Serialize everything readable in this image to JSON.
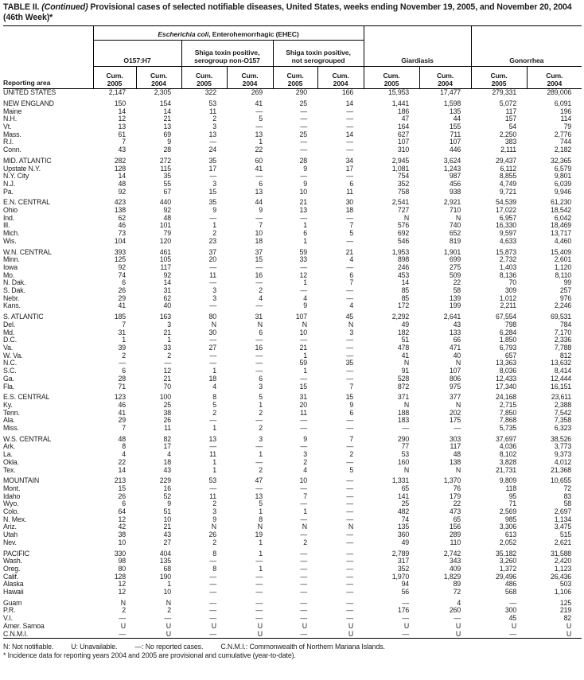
{
  "colors": {
    "background": "#ffffff",
    "text": "#1c1c1c",
    "rule": "#000000"
  },
  "title": {
    "part1": "TABLE II.",
    "part2": "(Continued)",
    "part3": "Provisional cases of selected notifiable diseases, United States, weeks ending November 19, 2005, and November 20, 2004 (46th Week)*"
  },
  "header": {
    "reporting_area": "Reporting area",
    "ehec_italic": "Escherichia coli",
    "ehec_rest": ", Enterohemorrhagic (EHEC)",
    "sub_o157": "O157:H7",
    "sub_non_o157_line1": "Shiga toxin positive,",
    "sub_non_o157_line2": "serogroup non-O157",
    "sub_notsero_line1": "Shiga toxin positive,",
    "sub_notsero_line2": "not serogrouped",
    "giardiasis": "Giardiasis",
    "gonorrhea": "Gonorrhea",
    "cum": "Cum.",
    "years": [
      "2005",
      "2004"
    ]
  },
  "table": {
    "rows": [
      {
        "area": "UNITED STATES",
        "type": "total",
        "values": [
          "2,147",
          "2,305",
          "322",
          "269",
          "290",
          "166",
          "15,953",
          "17,477",
          "279,331",
          "289,006"
        ]
      },
      {
        "area": "NEW ENGLAND",
        "type": "region",
        "gap": true,
        "values": [
          "150",
          "154",
          "53",
          "41",
          "25",
          "14",
          "1,441",
          "1,598",
          "5,072",
          "6,091"
        ]
      },
      {
        "area": "Maine",
        "type": "state",
        "values": [
          "14",
          "14",
          "11",
          "—",
          "—",
          "—",
          "186",
          "135",
          "117",
          "196"
        ]
      },
      {
        "area": "N.H.",
        "type": "state",
        "values": [
          "12",
          "21",
          "2",
          "5",
          "—",
          "—",
          "47",
          "44",
          "157",
          "114"
        ]
      },
      {
        "area": "Vt.",
        "type": "state",
        "values": [
          "13",
          "13",
          "3",
          "—",
          "—",
          "—",
          "164",
          "155",
          "54",
          "79"
        ]
      },
      {
        "area": "Mass.",
        "type": "state",
        "values": [
          "61",
          "69",
          "13",
          "13",
          "25",
          "14",
          "627",
          "711",
          "2,250",
          "2,776"
        ]
      },
      {
        "area": "R.I.",
        "type": "state",
        "values": [
          "7",
          "9",
          "—",
          "1",
          "—",
          "—",
          "107",
          "107",
          "383",
          "744"
        ]
      },
      {
        "area": "Conn.",
        "type": "state",
        "values": [
          "43",
          "28",
          "24",
          "22",
          "—",
          "—",
          "310",
          "446",
          "2,111",
          "2,182"
        ]
      },
      {
        "area": "MID. ATLANTIC",
        "type": "region",
        "gap": true,
        "values": [
          "282",
          "272",
          "35",
          "60",
          "28",
          "34",
          "2,945",
          "3,624",
          "29,437",
          "32,365"
        ]
      },
      {
        "area": "Upstate N.Y.",
        "type": "state",
        "values": [
          "128",
          "115",
          "17",
          "41",
          "9",
          "17",
          "1,081",
          "1,243",
          "6,112",
          "6,579"
        ]
      },
      {
        "area": "N.Y. City",
        "type": "state",
        "values": [
          "14",
          "35",
          "—",
          "—",
          "—",
          "—",
          "754",
          "987",
          "8,855",
          "9,801"
        ]
      },
      {
        "area": "N.J.",
        "type": "state",
        "values": [
          "48",
          "55",
          "3",
          "6",
          "9",
          "6",
          "352",
          "456",
          "4,749",
          "6,039"
        ]
      },
      {
        "area": "Pa.",
        "type": "state",
        "values": [
          "92",
          "67",
          "15",
          "13",
          "10",
          "11",
          "758",
          "938",
          "9,721",
          "9,946"
        ]
      },
      {
        "area": "E.N. CENTRAL",
        "type": "region",
        "gap": true,
        "values": [
          "423",
          "440",
          "35",
          "44",
          "21",
          "30",
          "2,541",
          "2,921",
          "54,539",
          "61,230"
        ]
      },
      {
        "area": "Ohio",
        "type": "state",
        "values": [
          "138",
          "92",
          "9",
          "9",
          "13",
          "18",
          "727",
          "710",
          "17,022",
          "18,542"
        ]
      },
      {
        "area": "Ind.",
        "type": "state",
        "values": [
          "62",
          "48",
          "—",
          "—",
          "—",
          "—",
          "N",
          "N",
          "6,957",
          "6,042"
        ]
      },
      {
        "area": "Ill.",
        "type": "state",
        "values": [
          "46",
          "101",
          "1",
          "7",
          "1",
          "7",
          "576",
          "740",
          "16,330",
          "18,469"
        ]
      },
      {
        "area": "Mich.",
        "type": "state",
        "values": [
          "73",
          "79",
          "2",
          "10",
          "6",
          "5",
          "692",
          "652",
          "9,597",
          "13,717"
        ]
      },
      {
        "area": "Wis.",
        "type": "state",
        "values": [
          "104",
          "120",
          "23",
          "18",
          "1",
          "—",
          "546",
          "819",
          "4,633",
          "4,460"
        ]
      },
      {
        "area": "W.N. CENTRAL",
        "type": "region",
        "gap": true,
        "values": [
          "393",
          "461",
          "37",
          "37",
          "59",
          "21",
          "1,953",
          "1,901",
          "15,873",
          "15,409"
        ]
      },
      {
        "area": "Minn.",
        "type": "state",
        "values": [
          "125",
          "105",
          "20",
          "15",
          "33",
          "4",
          "898",
          "699",
          "2,732",
          "2,601"
        ]
      },
      {
        "area": "Iowa",
        "type": "state",
        "values": [
          "92",
          "117",
          "—",
          "—",
          "—",
          "—",
          "246",
          "275",
          "1,403",
          "1,120"
        ]
      },
      {
        "area": "Mo.",
        "type": "state",
        "values": [
          "74",
          "92",
          "11",
          "16",
          "12",
          "6",
          "453",
          "509",
          "8,136",
          "8,110"
        ]
      },
      {
        "area": "N. Dak.",
        "type": "state",
        "values": [
          "6",
          "14",
          "—",
          "—",
          "1",
          "7",
          "14",
          "22",
          "70",
          "99"
        ]
      },
      {
        "area": "S. Dak.",
        "type": "state",
        "values": [
          "26",
          "31",
          "3",
          "2",
          "—",
          "—",
          "85",
          "58",
          "309",
          "257"
        ]
      },
      {
        "area": "Nebr.",
        "type": "state",
        "values": [
          "29",
          "62",
          "3",
          "4",
          "4",
          "—",
          "85",
          "139",
          "1,012",
          "976"
        ]
      },
      {
        "area": "Kans.",
        "type": "state",
        "values": [
          "41",
          "40",
          "—",
          "—",
          "9",
          "4",
          "172",
          "199",
          "2,211",
          "2,246"
        ]
      },
      {
        "area": "S. ATLANTIC",
        "type": "region",
        "gap": true,
        "values": [
          "185",
          "163",
          "80",
          "31",
          "107",
          "45",
          "2,292",
          "2,641",
          "67,554",
          "69,531"
        ]
      },
      {
        "area": "Del.",
        "type": "state",
        "values": [
          "7",
          "3",
          "N",
          "N",
          "N",
          "N",
          "49",
          "43",
          "798",
          "784"
        ]
      },
      {
        "area": "Md.",
        "type": "state",
        "values": [
          "31",
          "21",
          "30",
          "6",
          "10",
          "3",
          "182",
          "133",
          "6,284",
          "7,170"
        ]
      },
      {
        "area": "D.C.",
        "type": "state",
        "values": [
          "1",
          "1",
          "—",
          "—",
          "—",
          "—",
          "51",
          "66",
          "1,850",
          "2,336"
        ]
      },
      {
        "area": "Va.",
        "type": "state",
        "values": [
          "39",
          "33",
          "27",
          "16",
          "21",
          "—",
          "478",
          "471",
          "6,793",
          "7,788"
        ]
      },
      {
        "area": "W. Va.",
        "type": "state",
        "values": [
          "2",
          "2",
          "—",
          "—",
          "1",
          "—",
          "41",
          "40",
          "657",
          "812"
        ]
      },
      {
        "area": "N.C.",
        "type": "state",
        "values": [
          "—",
          "—",
          "—",
          "—",
          "59",
          "35",
          "N",
          "N",
          "13,363",
          "13,632"
        ]
      },
      {
        "area": "S.C.",
        "type": "state",
        "values": [
          "6",
          "12",
          "1",
          "—",
          "1",
          "—",
          "91",
          "107",
          "8,036",
          "8,414"
        ]
      },
      {
        "area": "Ga.",
        "type": "state",
        "values": [
          "28",
          "21",
          "18",
          "6",
          "—",
          "—",
          "528",
          "806",
          "12,433",
          "12,444"
        ]
      },
      {
        "area": "Fla.",
        "type": "state",
        "values": [
          "71",
          "70",
          "4",
          "3",
          "15",
          "7",
          "872",
          "975",
          "17,340",
          "16,151"
        ]
      },
      {
        "area": "E.S. CENTRAL",
        "type": "region",
        "gap": true,
        "values": [
          "123",
          "100",
          "8",
          "5",
          "31",
          "15",
          "371",
          "377",
          "24,168",
          "23,611"
        ]
      },
      {
        "area": "Ky.",
        "type": "state",
        "values": [
          "46",
          "25",
          "5",
          "1",
          "20",
          "9",
          "N",
          "N",
          "2,715",
          "2,388"
        ]
      },
      {
        "area": "Tenn.",
        "type": "state",
        "values": [
          "41",
          "38",
          "2",
          "2",
          "11",
          "6",
          "188",
          "202",
          "7,850",
          "7,542"
        ]
      },
      {
        "area": "Ala.",
        "type": "state",
        "values": [
          "29",
          "26",
          "—",
          "—",
          "—",
          "—",
          "183",
          "175",
          "7,868",
          "7,358"
        ]
      },
      {
        "area": "Miss.",
        "type": "state",
        "values": [
          "7",
          "11",
          "1",
          "2",
          "—",
          "—",
          "—",
          "—",
          "5,735",
          "6,323"
        ]
      },
      {
        "area": "W.S. CENTRAL",
        "type": "region",
        "gap": true,
        "values": [
          "48",
          "82",
          "13",
          "3",
          "9",
          "7",
          "290",
          "303",
          "37,697",
          "38,526"
        ]
      },
      {
        "area": "Ark.",
        "type": "state",
        "values": [
          "8",
          "17",
          "—",
          "—",
          "—",
          "—",
          "77",
          "117",
          "4,036",
          "3,773"
        ]
      },
      {
        "area": "La.",
        "type": "state",
        "values": [
          "4",
          "4",
          "11",
          "1",
          "3",
          "2",
          "53",
          "48",
          "8,102",
          "9,373"
        ]
      },
      {
        "area": "Okla.",
        "type": "state",
        "values": [
          "22",
          "18",
          "1",
          "—",
          "2",
          "—",
          "160",
          "138",
          "3,828",
          "4,012"
        ]
      },
      {
        "area": "Tex.",
        "type": "state",
        "values": [
          "14",
          "43",
          "1",
          "2",
          "4",
          "5",
          "N",
          "N",
          "21,731",
          "21,368"
        ]
      },
      {
        "area": "MOUNTAIN",
        "type": "region",
        "gap": true,
        "values": [
          "213",
          "229",
          "53",
          "47",
          "10",
          "—",
          "1,331",
          "1,370",
          "9,809",
          "10,655"
        ]
      },
      {
        "area": "Mont.",
        "type": "state",
        "values": [
          "15",
          "16",
          "—",
          "—",
          "—",
          "—",
          "65",
          "76",
          "118",
          "72"
        ]
      },
      {
        "area": "Idaho",
        "type": "state",
        "values": [
          "26",
          "52",
          "11",
          "13",
          "7",
          "—",
          "141",
          "179",
          "95",
          "83"
        ]
      },
      {
        "area": "Wyo.",
        "type": "state",
        "values": [
          "6",
          "9",
          "2",
          "5",
          "—",
          "—",
          "25",
          "22",
          "71",
          "58"
        ]
      },
      {
        "area": "Colo.",
        "type": "state",
        "values": [
          "64",
          "51",
          "3",
          "1",
          "1",
          "—",
          "482",
          "473",
          "2,569",
          "2,697"
        ]
      },
      {
        "area": "N. Mex.",
        "type": "state",
        "values": [
          "12",
          "10",
          "9",
          "8",
          "—",
          "—",
          "74",
          "65",
          "985",
          "1,134"
        ]
      },
      {
        "area": "Ariz.",
        "type": "state",
        "values": [
          "42",
          "21",
          "N",
          "N",
          "N",
          "N",
          "135",
          "156",
          "3,306",
          "3,475"
        ]
      },
      {
        "area": "Utah",
        "type": "state",
        "values": [
          "38",
          "43",
          "26",
          "19",
          "—",
          "—",
          "360",
          "289",
          "613",
          "515"
        ]
      },
      {
        "area": "Nev.",
        "type": "state",
        "values": [
          "10",
          "27",
          "2",
          "1",
          "2",
          "—",
          "49",
          "110",
          "2,052",
          "2,621"
        ]
      },
      {
        "area": "PACIFIC",
        "type": "region",
        "gap": true,
        "values": [
          "330",
          "404",
          "8",
          "1",
          "—",
          "—",
          "2,789",
          "2,742",
          "35,182",
          "31,588"
        ]
      },
      {
        "area": "Wash.",
        "type": "state",
        "values": [
          "98",
          "135",
          "—",
          "—",
          "—",
          "—",
          "317",
          "343",
          "3,260",
          "2,420"
        ]
      },
      {
        "area": "Oreg.",
        "type": "state",
        "values": [
          "80",
          "68",
          "8",
          "1",
          "—",
          "—",
          "352",
          "409",
          "1,372",
          "1,123"
        ]
      },
      {
        "area": "Calif.",
        "type": "state",
        "values": [
          "128",
          "190",
          "—",
          "—",
          "—",
          "—",
          "1,970",
          "1,829",
          "29,496",
          "26,436"
        ]
      },
      {
        "area": "Alaska",
        "type": "state",
        "values": [
          "12",
          "1",
          "—",
          "—",
          "—",
          "—",
          "94",
          "89",
          "486",
          "503"
        ]
      },
      {
        "area": "Hawaii",
        "type": "state",
        "values": [
          "12",
          "10",
          "—",
          "—",
          "—",
          "—",
          "56",
          "72",
          "568",
          "1,106"
        ]
      },
      {
        "area": "Guam",
        "type": "territory",
        "gap": true,
        "values": [
          "N",
          "N",
          "—",
          "—",
          "—",
          "—",
          "—",
          "4",
          "—",
          "125"
        ]
      },
      {
        "area": "P.R.",
        "type": "territory",
        "values": [
          "2",
          "2",
          "—",
          "—",
          "—",
          "—",
          "176",
          "260",
          "300",
          "219"
        ]
      },
      {
        "area": "V.I.",
        "type": "territory",
        "values": [
          "—",
          "—",
          "—",
          "—",
          "—",
          "—",
          "—",
          "—",
          "45",
          "82"
        ]
      },
      {
        "area": "Amer. Samoa",
        "type": "territory",
        "values": [
          "U",
          "U",
          "U",
          "U",
          "U",
          "U",
          "U",
          "U",
          "U",
          "U"
        ]
      },
      {
        "area": "C.N.M.I.",
        "type": "territory",
        "values": [
          "—",
          "U",
          "—",
          "U",
          "—",
          "U",
          "—",
          "U",
          "—",
          "U"
        ]
      }
    ]
  },
  "footnotes": {
    "abbr": [
      "N: Not notifiable.",
      "U: Unavailable.",
      "—: No reported cases.",
      "C.N.M.I.: Commonwealth of Northern Mariana Islands."
    ],
    "note": "* Incidence data for reporting years 2004 and 2005 are provisional and cumulative (year-to-date)."
  }
}
